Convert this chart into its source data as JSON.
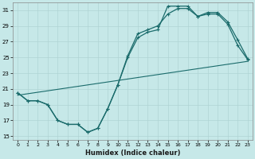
{
  "xlabel": "Humidex (Indice chaleur)",
  "background_color": "#c6e8e8",
  "grid_color": "#b0d4d4",
  "line_color": "#1a6b6b",
  "xlim": [
    -0.5,
    23.5
  ],
  "ylim": [
    14.5,
    32.0
  ],
  "yticks": [
    15,
    17,
    19,
    21,
    23,
    25,
    27,
    29,
    31
  ],
  "xticks": [
    0,
    1,
    2,
    3,
    4,
    5,
    6,
    7,
    8,
    9,
    10,
    11,
    12,
    13,
    14,
    15,
    16,
    17,
    18,
    19,
    20,
    21,
    22,
    23
  ],
  "curve1_x": [
    0,
    1,
    2,
    3,
    4,
    5,
    6,
    7,
    8,
    9,
    10,
    11,
    12,
    13,
    14,
    15,
    16,
    17,
    18,
    19,
    20,
    21,
    22,
    23
  ],
  "curve1_y": [
    20.5,
    19.5,
    19.5,
    19.0,
    17.0,
    16.5,
    16.5,
    15.5,
    16.0,
    18.5,
    21.5,
    25.0,
    27.5,
    28.2,
    28.5,
    31.5,
    31.5,
    31.5,
    30.2,
    30.5,
    30.5,
    29.2,
    26.5,
    24.7
  ],
  "curve2_x": [
    0,
    1,
    2,
    3,
    4,
    5,
    6,
    7,
    8,
    9,
    10,
    11,
    12,
    13,
    14,
    15,
    16,
    17,
    18,
    19,
    20,
    21,
    22,
    23
  ],
  "curve2_y": [
    20.5,
    19.5,
    19.5,
    19.0,
    17.0,
    16.5,
    16.5,
    15.5,
    16.0,
    18.5,
    21.5,
    25.2,
    28.0,
    28.5,
    29.0,
    30.5,
    31.2,
    31.2,
    30.2,
    30.7,
    30.7,
    29.5,
    27.2,
    24.8
  ],
  "trend_x": [
    0,
    23
  ],
  "trend_y": [
    20.2,
    24.5
  ]
}
